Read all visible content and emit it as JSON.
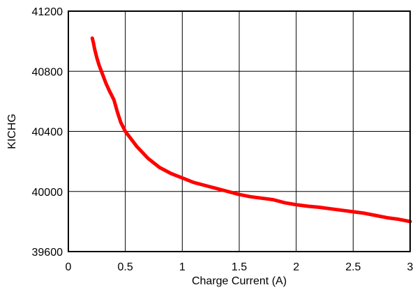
{
  "chart_data": {
    "type": "line",
    "xlabel": "Charge Current (A)",
    "ylabel": "KICHG",
    "xlim": [
      0,
      3
    ],
    "ylim": [
      39600,
      41200
    ],
    "x_ticks": [
      0,
      0.5,
      1,
      1.5,
      2,
      2.5,
      3
    ],
    "x_tick_labels": [
      "0",
      "0.5",
      "1",
      "1.5",
      "2",
      "2.5",
      "3"
    ],
    "y_ticks": [
      39600,
      40000,
      40400,
      40800,
      41200
    ],
    "y_tick_labels": [
      "39600",
      "40000",
      "40400",
      "40800",
      "41200"
    ],
    "grid": true,
    "series": [
      {
        "color": "#ff0000",
        "x": [
          0.21,
          0.22,
          0.23,
          0.24,
          0.25,
          0.27,
          0.3,
          0.33,
          0.36,
          0.4,
          0.43,
          0.46,
          0.5,
          0.55,
          0.6,
          0.65,
          0.7,
          0.8,
          0.9,
          1.0,
          1.1,
          1.2,
          1.3,
          1.4,
          1.5,
          1.6,
          1.7,
          1.8,
          1.9,
          2.0,
          2.1,
          2.2,
          2.3,
          2.4,
          2.5,
          2.6,
          2.7,
          2.8,
          2.9,
          3.0
        ],
        "y": [
          41020,
          40990,
          40950,
          40920,
          40890,
          40840,
          40780,
          40720,
          40670,
          40610,
          40530,
          40460,
          40400,
          40350,
          40300,
          40260,
          40220,
          40160,
          40120,
          40090,
          40060,
          40040,
          40020,
          40000,
          39980,
          39965,
          39955,
          39945,
          39925,
          39912,
          39902,
          39895,
          39885,
          39875,
          39865,
          39855,
          39840,
          39825,
          39815,
          39800
        ]
      }
    ]
  }
}
